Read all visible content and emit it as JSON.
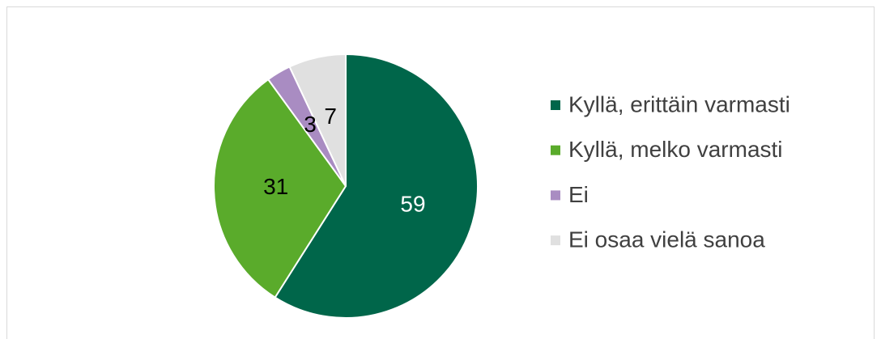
{
  "chart_data": {
    "type": "pie",
    "categories": [
      "Kyllä, erittäin varmasti",
      "Kyllä, melko varmasti",
      "Ei",
      "Ei osaa vielä sanoa"
    ],
    "values": [
      59,
      31,
      3,
      7
    ],
    "colors": [
      "#00664a",
      "#5aab2b",
      "#a98cc2",
      "#e0e0e0"
    ],
    "label_colors": [
      "#ffffff",
      "#000000",
      "#000000",
      "#000000"
    ],
    "legend": "right"
  }
}
